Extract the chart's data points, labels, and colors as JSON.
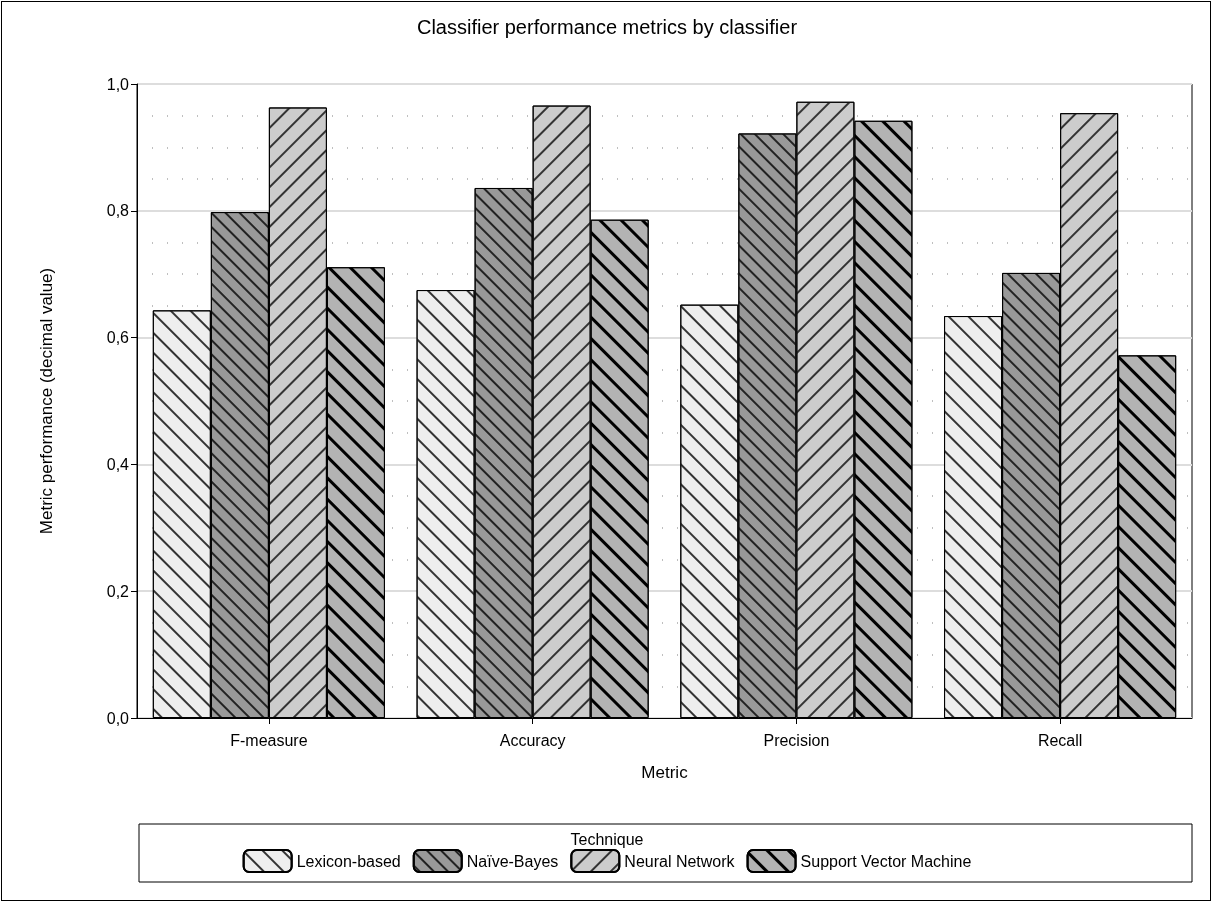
{
  "chart_data": {
    "type": "bar",
    "title": "Classifier performance metrics by classifier",
    "xlabel": "Metric",
    "ylabel": "Metric performance (decimal value)",
    "legend_title": "Technique",
    "categories": [
      "F-measure",
      "Accuracy",
      "Precision",
      "Recall"
    ],
    "series": [
      {
        "name": "Lexicon-based",
        "color": "#eeeeee",
        "values": [
          0.643,
          0.675,
          0.652,
          0.634
        ]
      },
      {
        "name": "Naïve-Bayes",
        "color": "#999999",
        "values": [
          0.798,
          0.836,
          0.922,
          0.702
        ]
      },
      {
        "name": "Neural Network",
        "color": "#cccccc",
        "values": [
          0.963,
          0.966,
          0.972,
          0.954
        ]
      },
      {
        "name": "Support Vector Machine",
        "color": "#b3b3b3",
        "values": [
          0.711,
          0.786,
          0.942,
          0.572
        ]
      }
    ],
    "ylim": [
      0,
      1
    ],
    "yticks": [
      {
        "value": 0,
        "label": "0,0"
      },
      {
        "value": 0.2,
        "label": "0,2"
      },
      {
        "value": 0.4,
        "label": "0,4"
      },
      {
        "value": 0.6,
        "label": "0,6"
      },
      {
        "value": 0.8,
        "label": "0,8"
      },
      {
        "value": 1,
        "label": "1,0"
      }
    ],
    "grid": "y",
    "legend": "bottom"
  }
}
